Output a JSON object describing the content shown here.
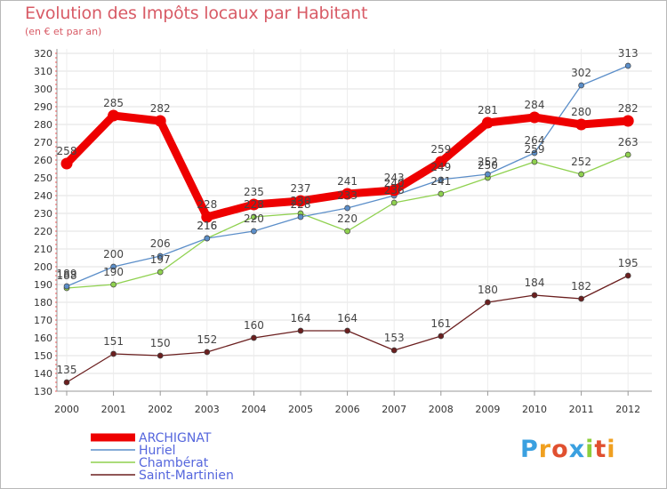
{
  "title": "Evolution des Impôts locaux par Habitant",
  "subtitle": "(en € et par an)",
  "logo_text": "Proxiti",
  "chart_data": {
    "type": "line",
    "x": [
      "2000",
      "2001",
      "2002",
      "2003",
      "2004",
      "2005",
      "2006",
      "2007",
      "2008",
      "2009",
      "2010",
      "2011",
      "2012"
    ],
    "ylim": [
      130,
      320
    ],
    "yticks": [
      130,
      140,
      150,
      160,
      170,
      180,
      190,
      200,
      210,
      220,
      230,
      240,
      250,
      260,
      270,
      280,
      290,
      300,
      310,
      320
    ],
    "grid": true,
    "legend_position": "bottom-left",
    "series": [
      {
        "name": "ARCHIGNAT",
        "color": "#ee0000",
        "values": [
          258,
          285,
          282,
          228,
          235,
          237,
          241,
          243,
          259,
          281,
          284,
          280,
          282
        ]
      },
      {
        "name": "Huriel",
        "color": "#5b8ec9",
        "values": [
          189,
          200,
          206,
          216,
          220,
          228,
          233,
          240,
          249,
          252,
          264,
          302,
          313
        ]
      },
      {
        "name": "Chambérat",
        "color": "#8fd14f",
        "values": [
          188,
          190,
          197,
          216,
          228,
          230,
          220,
          236,
          241,
          250,
          259,
          252,
          263
        ]
      },
      {
        "name": "Saint-Martinien",
        "color": "#6b1f1f",
        "values": [
          135,
          151,
          150,
          152,
          160,
          164,
          164,
          153,
          161,
          180,
          184,
          182,
          195
        ]
      }
    ]
  }
}
